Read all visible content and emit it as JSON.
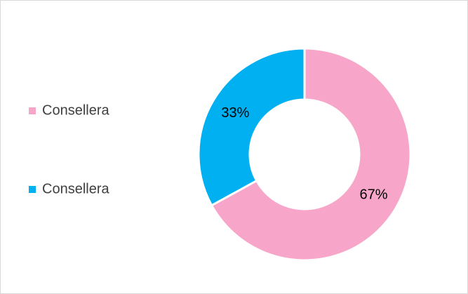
{
  "chart_data": {
    "type": "donut",
    "categories": [
      "Consellera",
      "Consellera"
    ],
    "values": [
      67,
      33
    ],
    "value_labels": [
      "67%",
      "33%"
    ],
    "colors": [
      "#f7a5c9",
      "#00b0f0"
    ],
    "legend": "left"
  }
}
